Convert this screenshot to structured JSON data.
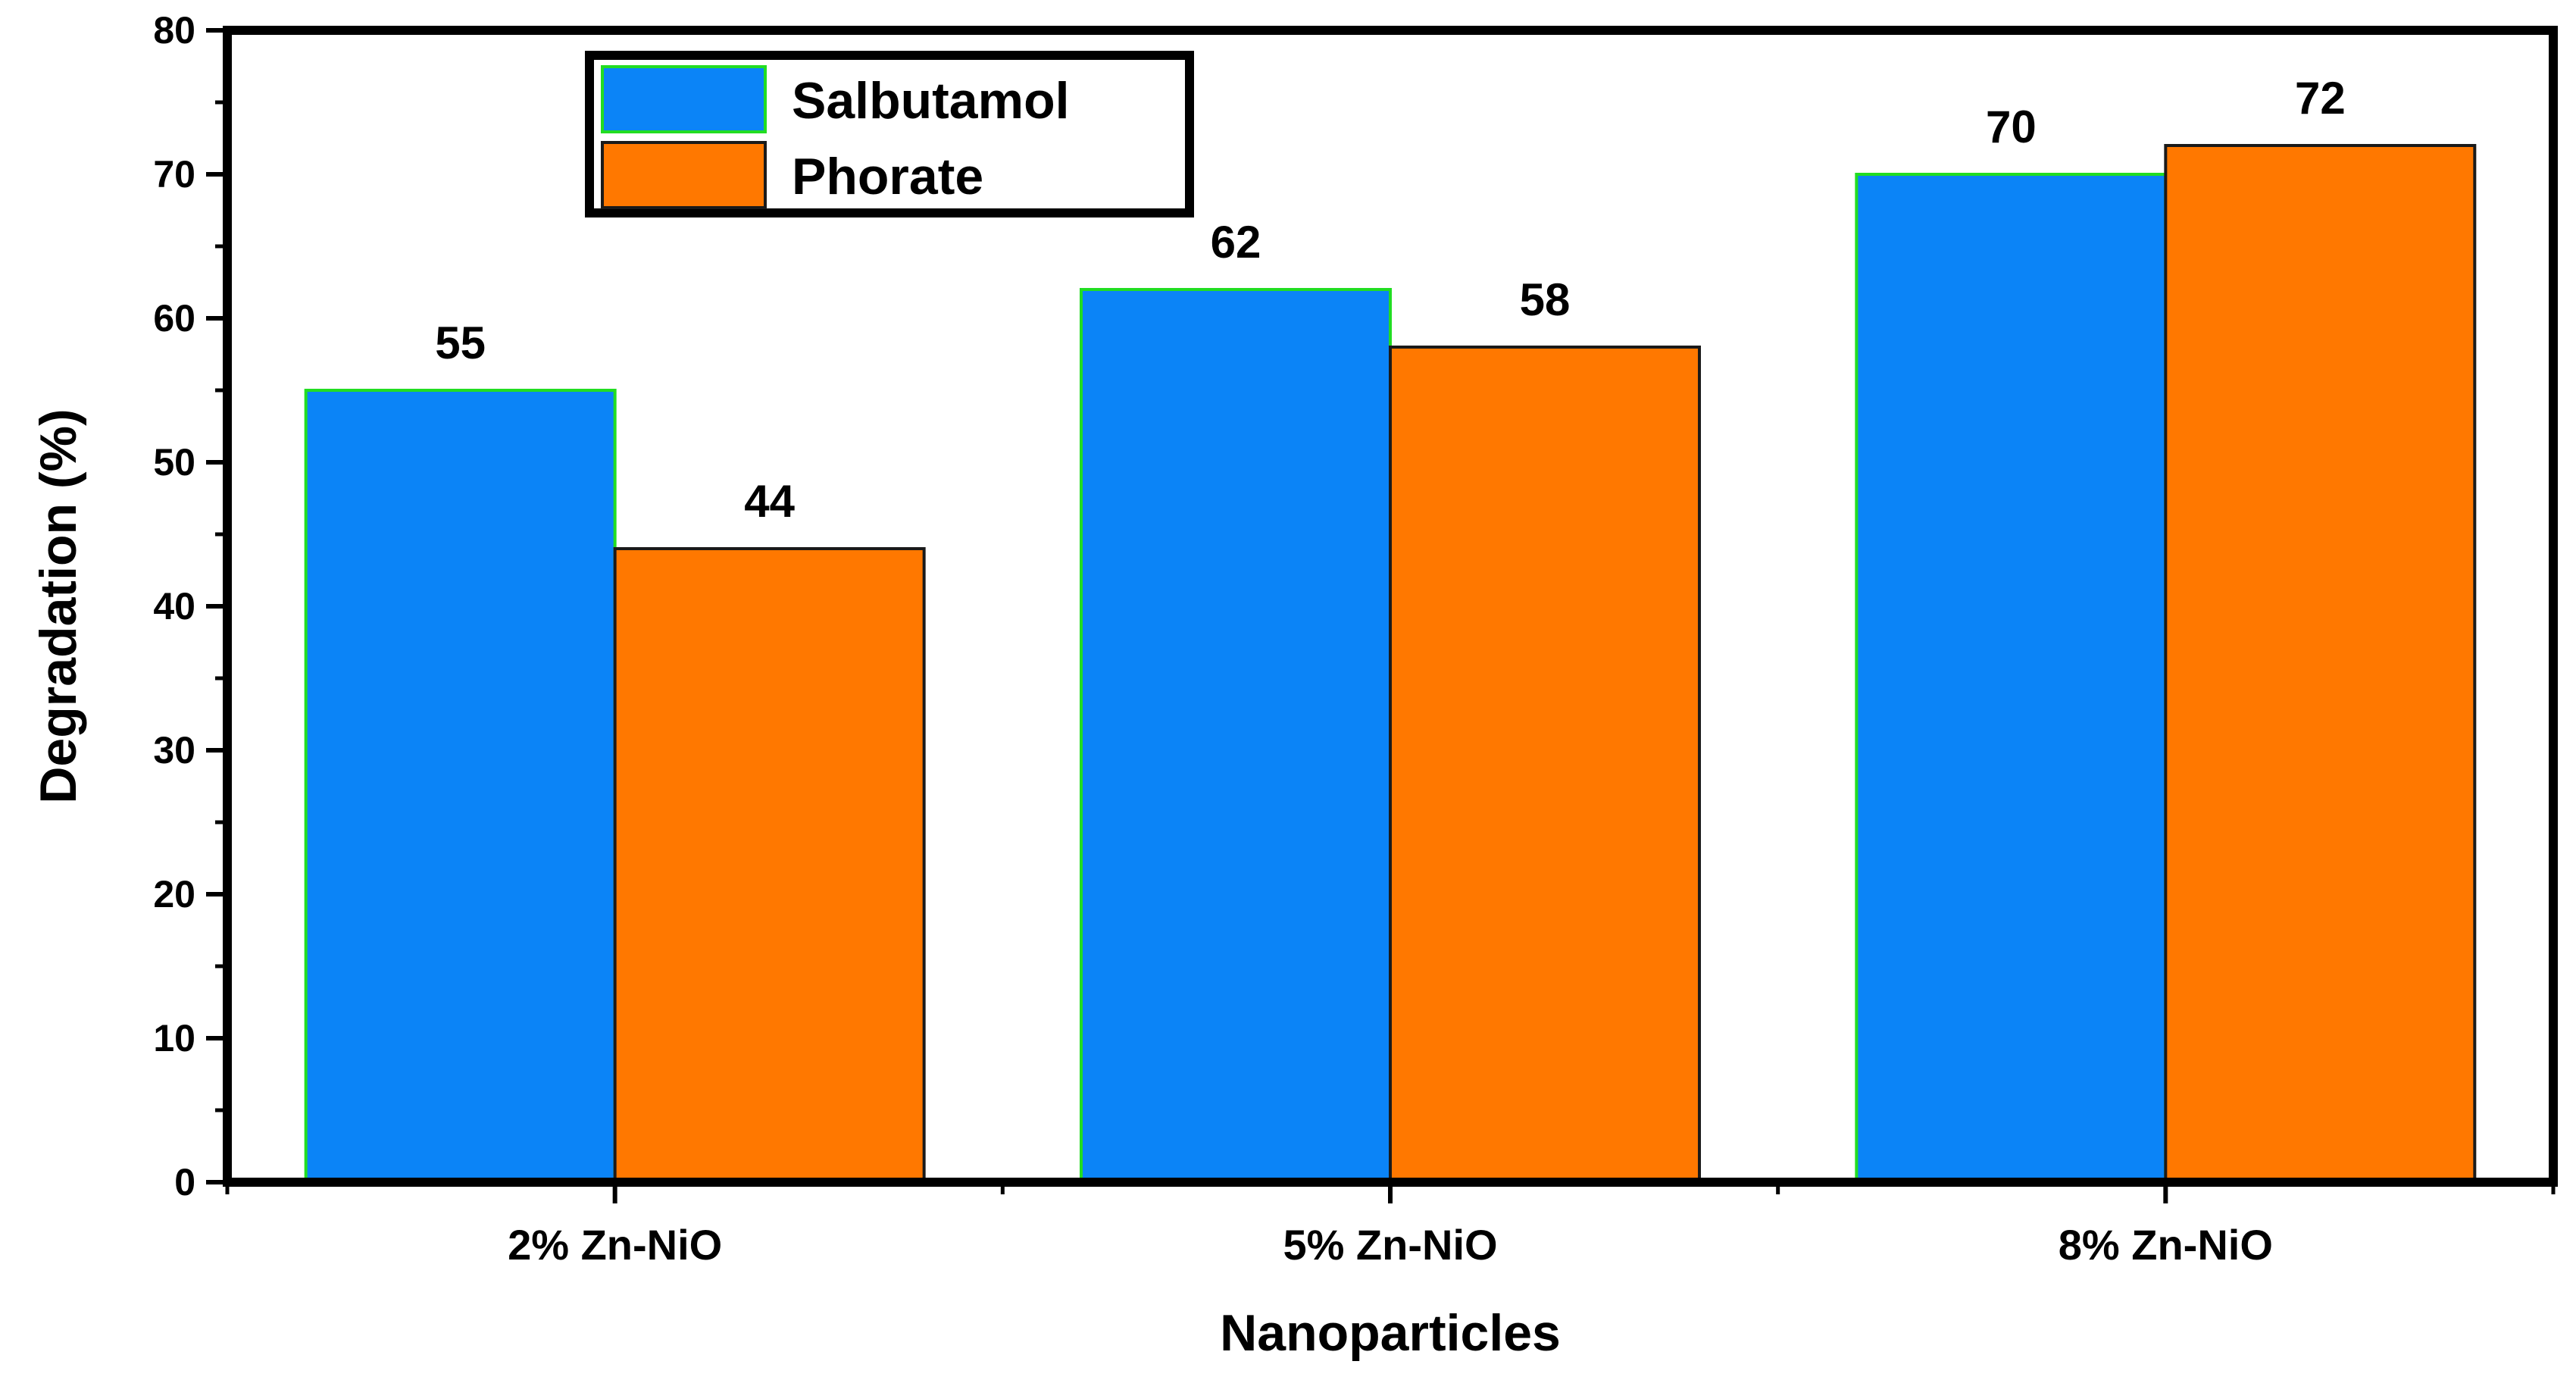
{
  "chart_data": {
    "type": "bar",
    "xlabel": "Nanoparticles",
    "ylabel": "Degradation (%)",
    "categories": [
      "2% Zn-NiO",
      "5% Zn-NiO",
      "8% Zn-NiO"
    ],
    "series": [
      {
        "name": "Salbutamol",
        "values": [
          55,
          62,
          70
        ],
        "labels": [
          "55",
          "62",
          "70"
        ],
        "color": "#0b84f7",
        "edge_color": "#22dd22"
      },
      {
        "name": "Phorate",
        "values": [
          44,
          58,
          72
        ],
        "labels": [
          "44",
          "58",
          "72"
        ],
        "color": "#ff7800",
        "edge_color": "#1a1a1a"
      }
    ],
    "ylim": [
      0,
      80
    ],
    "yticks": [
      0,
      10,
      20,
      30,
      40,
      50,
      60,
      70,
      80
    ],
    "ytick_labels": [
      "0",
      "10",
      "20",
      "30",
      "40",
      "50",
      "60",
      "70",
      "80"
    ],
    "grid": false,
    "legend_position": "top-left"
  }
}
